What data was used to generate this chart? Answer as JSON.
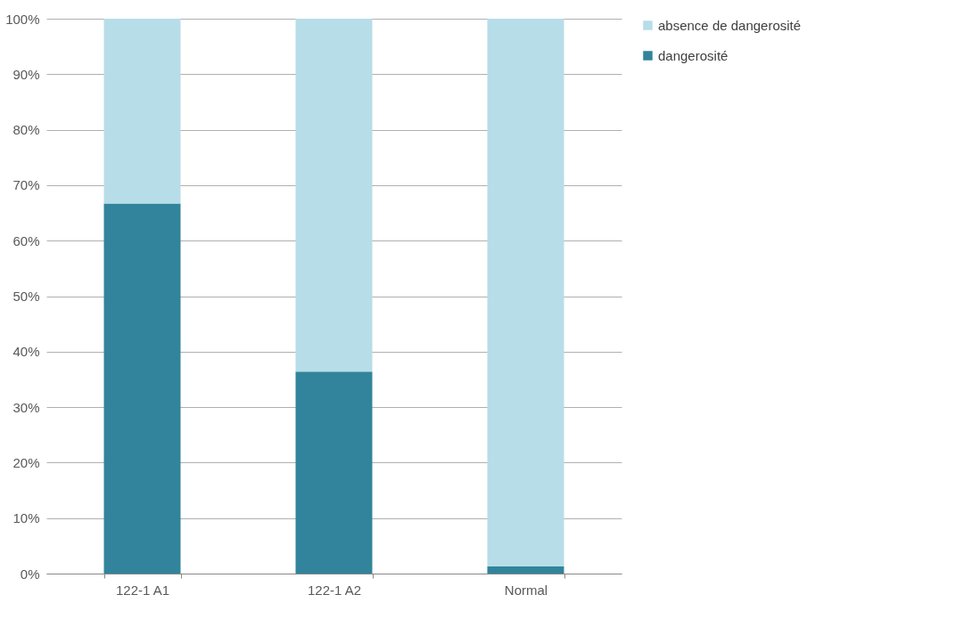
{
  "chart_data": {
    "type": "bar",
    "stacked": true,
    "categories": [
      "122-1 A1",
      "122-1 A2",
      "Normal"
    ],
    "series": [
      {
        "name": "dangerosité",
        "color": "#31849b",
        "values": [
          66.7,
          36.4,
          1.3
        ]
      },
      {
        "name": "absence de dangerosité",
        "color": "#b7dde8",
        "values": [
          33.3,
          63.6,
          98.7
        ]
      }
    ],
    "ylim": [
      0,
      100
    ],
    "yticks": [
      {
        "value": 0,
        "label": "0%"
      },
      {
        "value": 10,
        "label": "10%"
      },
      {
        "value": 20,
        "label": "20%"
      },
      {
        "value": 30,
        "label": "30%"
      },
      {
        "value": 40,
        "label": "40%"
      },
      {
        "value": 50,
        "label": "50%"
      },
      {
        "value": 60,
        "label": "60%"
      },
      {
        "value": 70,
        "label": "70%"
      },
      {
        "value": 80,
        "label": "80%"
      },
      {
        "value": 90,
        "label": "90%"
      },
      {
        "value": 100,
        "label": "100%"
      }
    ],
    "grid": "y",
    "legend": "right"
  }
}
